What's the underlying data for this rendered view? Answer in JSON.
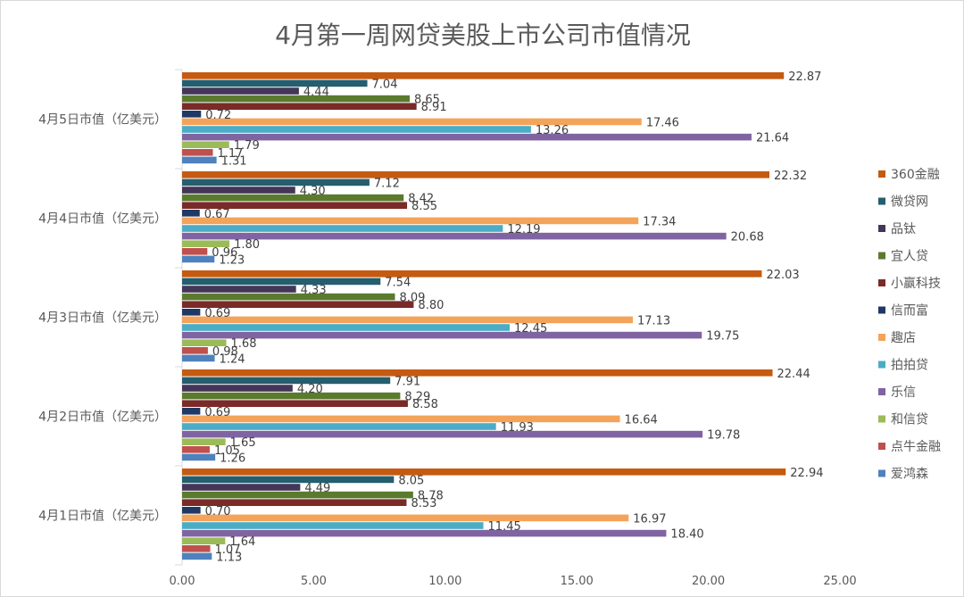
{
  "chart_data": {
    "type": "bar",
    "orientation": "horizontal",
    "title": "4月第一周网贷美股上市公司市值情况",
    "xlim": [
      0,
      25
    ],
    "x_ticks": [
      "0.00",
      "5.00",
      "10.00",
      "15.00",
      "20.00",
      "25.00"
    ],
    "categories": [
      "4月5日市值（亿美元）",
      "4月4日市值（亿美元）",
      "4月3日市值（亿美元）",
      "4月2日市值（亿美元）",
      "4月1日市值（亿美元）"
    ],
    "legend_position": "right",
    "grid": false,
    "series": [
      {
        "name": "360金融",
        "color": "#c55a11",
        "values": [
          22.87,
          22.32,
          22.03,
          22.44,
          22.94
        ],
        "labels": [
          "22.87",
          "22.32",
          "22.03",
          "22.44",
          "22.94"
        ]
      },
      {
        "name": "微贷网",
        "color": "#255e6e",
        "values": [
          7.04,
          7.12,
          7.54,
          7.91,
          8.05
        ],
        "labels": [
          "7.04",
          "7.12",
          "7.54",
          "7.91",
          "8.05"
        ]
      },
      {
        "name": "品钛",
        "color": "#433658",
        "values": [
          4.44,
          4.3,
          4.33,
          4.2,
          4.49
        ],
        "labels": [
          "4.44",
          "4.30",
          "4.33",
          "4.20",
          "4.49"
        ]
      },
      {
        "name": "宜人贷",
        "color": "#5a7a2e",
        "values": [
          8.65,
          8.42,
          8.09,
          8.29,
          8.78
        ],
        "labels": [
          "8.65",
          "8.42",
          "8.09",
          "8.29",
          "8.78"
        ]
      },
      {
        "name": "小赢科技",
        "color": "#7a2a28",
        "values": [
          8.91,
          8.55,
          8.8,
          8.58,
          8.53
        ],
        "labels": [
          "8.91",
          "8.55",
          "8.80",
          "8.58",
          "8.53"
        ]
      },
      {
        "name": "信而富",
        "color": "#203864",
        "values": [
          0.72,
          0.67,
          0.69,
          0.69,
          0.7
        ],
        "labels": [
          "0.72",
          "0.67",
          "0.69",
          "0.69",
          "0.70"
        ]
      },
      {
        "name": "趣店",
        "color": "#f4a35a",
        "values": [
          17.46,
          17.34,
          17.13,
          16.64,
          16.97
        ],
        "labels": [
          "17.46",
          "17.34",
          "17.13",
          "16.64",
          "16.97"
        ]
      },
      {
        "name": "拍拍贷",
        "color": "#4bacc6",
        "values": [
          13.26,
          12.19,
          12.45,
          11.93,
          11.45
        ],
        "labels": [
          "13.26",
          "12.19",
          "12.45",
          "11.93",
          "11.45"
        ]
      },
      {
        "name": "乐信",
        "color": "#8064a2",
        "values": [
          21.64,
          20.68,
          19.75,
          19.78,
          18.4
        ],
        "labels": [
          "21.64",
          "20.68",
          "19.75",
          "19.78",
          "18.40"
        ]
      },
      {
        "name": "和信贷",
        "color": "#9bbb59",
        "values": [
          1.79,
          1.8,
          1.68,
          1.65,
          1.64
        ],
        "labels": [
          "1.79",
          "1.80",
          "1.68",
          "1.65",
          "1.64"
        ]
      },
      {
        "name": "点牛金融",
        "color": "#c0504d",
        "values": [
          1.17,
          0.96,
          0.98,
          1.05,
          1.07
        ],
        "labels": [
          "1.17",
          "0.96",
          "0.98",
          "1.05",
          "1.07"
        ]
      },
      {
        "name": "爱鸿森",
        "color": "#4f81bd",
        "values": [
          1.31,
          1.23,
          1.24,
          1.26,
          1.13
        ],
        "labels": [
          "1.31",
          "1.23",
          "1.24",
          "1.26",
          "1.13"
        ]
      }
    ]
  }
}
